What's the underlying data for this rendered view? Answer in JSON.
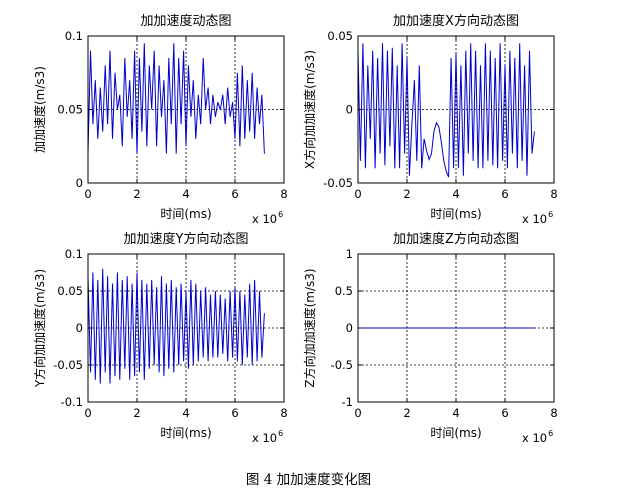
{
  "figure_caption": "图 4  加加速度变化图",
  "chart_data": [
    {
      "type": "line",
      "title": "加加速度动态图",
      "xlabel": "时间(ms)",
      "ylabel": "加加速度(m/s3)",
      "x_multiplier_label": "x 10",
      "x_multiplier_exp": "6",
      "xlim": [
        0,
        8
      ],
      "ylim": [
        0,
        0.1
      ],
      "xticks": [
        0,
        2,
        4,
        6,
        8
      ],
      "yticks": [
        0,
        0.05,
        0.1
      ],
      "xticklabels": [
        "0",
        "2",
        "4",
        "6",
        "8"
      ],
      "yticklabels": [
        "0",
        "0.05",
        "0.1"
      ],
      "grid": true,
      "line_color": "#0000cc",
      "series": [
        {
          "x": [
            0,
            0.1,
            0.2,
            0.3,
            0.4,
            0.5,
            0.6,
            0.7,
            0.8,
            0.9,
            1.0,
            1.1,
            1.2,
            1.3,
            1.4,
            1.5,
            1.6,
            1.7,
            1.8,
            1.9,
            2.0,
            2.1,
            2.2,
            2.3,
            2.4,
            2.5,
            2.6,
            2.7,
            2.8,
            2.9,
            3.0,
            3.1,
            3.2,
            3.3,
            3.4,
            3.5,
            3.6,
            3.7,
            3.8,
            3.9,
            4.0,
            4.1,
            4.2,
            4.3,
            4.4,
            4.5,
            4.6,
            4.7,
            4.8,
            4.9,
            5.0,
            5.1,
            5.2,
            5.3,
            5.4,
            5.5,
            5.6,
            5.7,
            5.8,
            5.9,
            6.0,
            6.1,
            6.2,
            6.3,
            6.4,
            6.5,
            6.6,
            6.7,
            6.8,
            6.9,
            7.0,
            7.1,
            7.2
          ],
          "values": [
            0.02,
            0.09,
            0.04,
            0.07,
            0.03,
            0.065,
            0.035,
            0.08,
            0.04,
            0.09,
            0.03,
            0.075,
            0.05,
            0.06,
            0.025,
            0.085,
            0.045,
            0.07,
            0.03,
            0.09,
            0.02,
            0.085,
            0.035,
            0.095,
            0.025,
            0.08,
            0.05,
            0.09,
            0.025,
            0.08,
            0.045,
            0.07,
            0.02,
            0.085,
            0.04,
            0.095,
            0.02,
            0.085,
            0.04,
            0.09,
            0.025,
            0.08,
            0.045,
            0.07,
            0.03,
            0.06,
            0.04,
            0.085,
            0.05,
            0.065,
            0.04,
            0.06,
            0.045,
            0.055,
            0.05,
            0.06,
            0.04,
            0.065,
            0.045,
            0.055,
            0.03,
            0.075,
            0.025,
            0.08,
            0.03,
            0.07,
            0.035,
            0.075,
            0.03,
            0.065,
            0.04,
            0.06,
            0.02
          ]
        }
      ]
    },
    {
      "type": "line",
      "title": "加加速度X方向动态图",
      "xlabel": "时间(ms)",
      "ylabel": "X方向加加速度(m/s3)",
      "x_multiplier_label": "x 10",
      "x_multiplier_exp": "6",
      "xlim": [
        0,
        8
      ],
      "ylim": [
        -0.05,
        0.05
      ],
      "xticks": [
        0,
        2,
        4,
        6,
        8
      ],
      "yticks": [
        -0.05,
        0,
        0.05
      ],
      "xticklabels": [
        "0",
        "2",
        "4",
        "6",
        "8"
      ],
      "yticklabels": [
        "-0.05",
        "0",
        "0.05"
      ],
      "grid": true,
      "line_color": "#0000cc",
      "series": [
        {
          "x": [
            0,
            0.1,
            0.2,
            0.3,
            0.4,
            0.5,
            0.6,
            0.7,
            0.8,
            0.9,
            1.0,
            1.1,
            1.2,
            1.3,
            1.4,
            1.5,
            1.6,
            1.7,
            1.8,
            1.9,
            2.0,
            2.1,
            2.2,
            2.3,
            2.4,
            2.5,
            2.6,
            2.7,
            2.8,
            2.9,
            3.0,
            3.1,
            3.2,
            3.3,
            3.4,
            3.5,
            3.6,
            3.7,
            3.8,
            3.9,
            4.0,
            4.1,
            4.2,
            4.3,
            4.4,
            4.5,
            4.6,
            4.7,
            4.8,
            4.9,
            5.0,
            5.1,
            5.2,
            5.3,
            5.4,
            5.5,
            5.6,
            5.7,
            5.8,
            5.9,
            6.0,
            6.1,
            6.2,
            6.3,
            6.4,
            6.5,
            6.6,
            6.7,
            6.8,
            6.9,
            7.0,
            7.1,
            7.2
          ],
          "values": [
            0.04,
            -0.035,
            0.045,
            -0.04,
            0.03,
            -0.02,
            0.04,
            -0.04,
            0.035,
            -0.03,
            0.045,
            -0.038,
            0.04,
            -0.025,
            0.042,
            -0.04,
            0.03,
            -0.04,
            0.045,
            -0.03,
            0.035,
            -0.045,
            -0.01,
            0.02,
            -0.035,
            0.03,
            -0.04,
            -0.02,
            -0.028,
            -0.034,
            -0.03,
            -0.015,
            -0.009,
            -0.012,
            -0.022,
            -0.035,
            -0.042,
            -0.046,
            0.035,
            -0.04,
            0.038,
            -0.04,
            0.03,
            -0.045,
            0.04,
            -0.03,
            0.045,
            -0.035,
            0.04,
            -0.04,
            0.03,
            -0.04,
            0.045,
            -0.035,
            0.04,
            -0.038,
            0.035,
            -0.04,
            0.045,
            -0.035,
            0.03,
            -0.04,
            0.04,
            -0.03,
            0.035,
            -0.04,
            0.045,
            -0.035,
            0.03,
            -0.045,
            0.04,
            -0.03,
            -0.015
          ]
        }
      ]
    },
    {
      "type": "line",
      "title": "加加速度Y方向动态图",
      "xlabel": "时间(ms)",
      "ylabel": "Y方向加加速度(m/s3)",
      "x_multiplier_label": "x 10",
      "x_multiplier_exp": "6",
      "xlim": [
        0,
        8
      ],
      "ylim": [
        -0.1,
        0.1
      ],
      "xticks": [
        0,
        2,
        4,
        6,
        8
      ],
      "yticks": [
        -0.1,
        -0.05,
        0,
        0.05,
        0.1
      ],
      "xticklabels": [
        "0",
        "2",
        "4",
        "6",
        "8"
      ],
      "yticklabels": [
        "-0.1",
        "-0.05",
        "0",
        "0.05",
        "0.1"
      ],
      "grid": true,
      "line_color": "#0000cc",
      "series": [
        {
          "x": [
            0,
            0.1,
            0.2,
            0.3,
            0.4,
            0.5,
            0.6,
            0.7,
            0.8,
            0.9,
            1.0,
            1.1,
            1.2,
            1.3,
            1.4,
            1.5,
            1.6,
            1.7,
            1.8,
            1.9,
            2.0,
            2.1,
            2.2,
            2.3,
            2.4,
            2.5,
            2.6,
            2.7,
            2.8,
            2.9,
            3.0,
            3.1,
            3.2,
            3.3,
            3.4,
            3.5,
            3.6,
            3.7,
            3.8,
            3.9,
            4.0,
            4.1,
            4.2,
            4.3,
            4.4,
            4.5,
            4.6,
            4.7,
            4.8,
            4.9,
            5.0,
            5.1,
            5.2,
            5.3,
            5.4,
            5.5,
            5.6,
            5.7,
            5.8,
            5.9,
            6.0,
            6.1,
            6.2,
            6.3,
            6.4,
            6.5,
            6.6,
            6.7,
            6.8,
            6.9,
            7.0,
            7.1,
            7.2
          ],
          "values": [
            0.07,
            -0.06,
            0.075,
            -0.07,
            0.065,
            -0.075,
            0.08,
            -0.06,
            0.07,
            -0.075,
            0.06,
            -0.065,
            0.075,
            -0.07,
            0.065,
            -0.055,
            0.07,
            -0.07,
            0.06,
            -0.065,
            0.075,
            -0.06,
            0.065,
            -0.07,
            0.06,
            -0.055,
            0.065,
            -0.05,
            0.055,
            -0.06,
            0.07,
            -0.065,
            0.06,
            -0.055,
            0.065,
            -0.06,
            0.055,
            -0.05,
            0.06,
            -0.045,
            0.05,
            -0.055,
            0.065,
            -0.05,
            0.06,
            -0.045,
            0.05,
            -0.04,
            0.055,
            -0.045,
            0.045,
            -0.04,
            0.05,
            -0.04,
            0.045,
            -0.035,
            0.04,
            -0.045,
            0.05,
            -0.04,
            0.055,
            -0.045,
            0.05,
            -0.05,
            0.045,
            -0.04,
            0.06,
            -0.05,
            0.065,
            -0.045,
            0.05,
            -0.04,
            0.02
          ]
        }
      ]
    },
    {
      "type": "line",
      "title": "加加速度Z方向动态图",
      "xlabel": "时间(ms)",
      "ylabel": "Z方向加加速度(m/s3)",
      "x_multiplier_label": "x 10",
      "x_multiplier_exp": "6",
      "xlim": [
        0,
        8
      ],
      "ylim": [
        -1,
        1
      ],
      "xticks": [
        0,
        2,
        4,
        6,
        8
      ],
      "yticks": [
        -1,
        -0.5,
        0,
        0.5,
        1
      ],
      "xticklabels": [
        "0",
        "2",
        "4",
        "6",
        "8"
      ],
      "yticklabels": [
        "-1",
        "-0.5",
        "0",
        "0.5",
        "1"
      ],
      "grid": true,
      "line_color": "#0000cc",
      "series": [
        {
          "x": [
            0,
            7.2
          ],
          "values": [
            0,
            0
          ]
        }
      ]
    }
  ]
}
